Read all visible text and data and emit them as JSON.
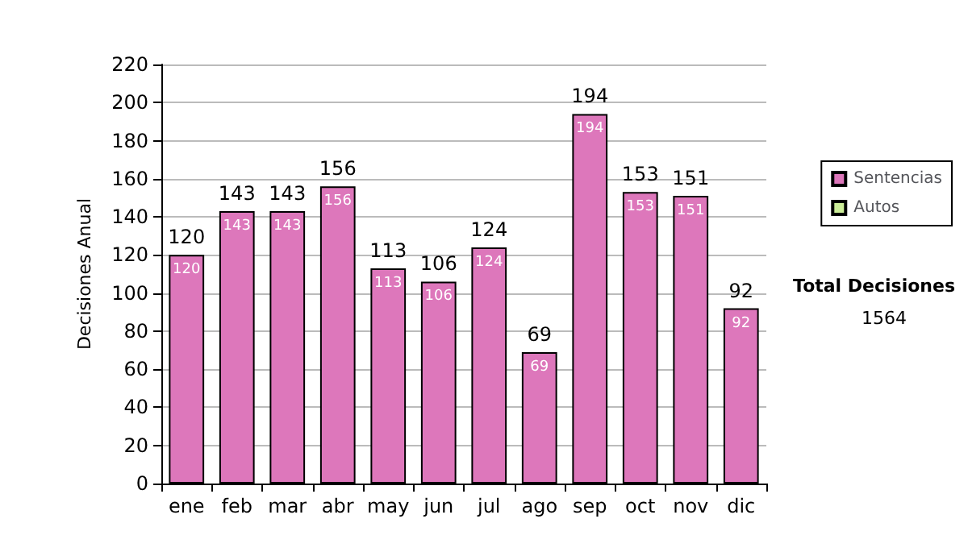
{
  "chart_data": {
    "type": "bar",
    "ylabel": "Decisiones Anual",
    "categories": [
      "ene",
      "feb",
      "mar",
      "abr",
      "may",
      "jun",
      "jul",
      "ago",
      "sep",
      "oct",
      "nov",
      "dic"
    ],
    "series": [
      {
        "name": "Sentencias",
        "color": "#dd77bb",
        "values": [
          120,
          143,
          143,
          156,
          113,
          106,
          124,
          69,
          194,
          153,
          151,
          92
        ],
        "value_labels": [
          "120",
          "143",
          "143",
          "156",
          "113",
          "106",
          "124",
          "69",
          "194",
          "153",
          "151",
          "92"
        ]
      },
      {
        "name": "Autos",
        "color": "#ccee99",
        "values": [
          0,
          0,
          0,
          0,
          0,
          0,
          0,
          0,
          0,
          0,
          0,
          0
        ]
      }
    ],
    "stacked": true,
    "totals": [
      "120",
      "143",
      "143",
      "156",
      "113",
      "106",
      "124",
      "69",
      "194",
      "153",
      "151",
      "92"
    ],
    "ylim": [
      0,
      220
    ],
    "yticks": [
      0,
      20,
      40,
      60,
      80,
      100,
      120,
      140,
      160,
      180,
      200,
      220
    ],
    "grid": "y",
    "legend": "right",
    "annotations": [
      "Total Decisiones",
      "1564"
    ]
  }
}
